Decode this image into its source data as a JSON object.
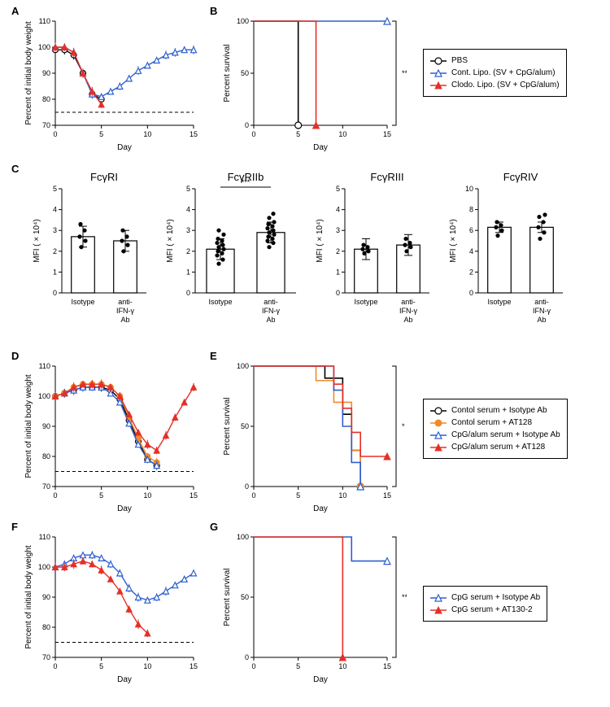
{
  "panels": {
    "A": "A",
    "B": "B",
    "C": "C",
    "D": "D",
    "E": "E",
    "F": "F",
    "G": "G"
  },
  "colors": {
    "black": "#000000",
    "blue": "#2e5fd0",
    "red": "#e53027",
    "orange": "#f08b2a",
    "white": "#ffffff"
  },
  "legendAB": {
    "items": [
      {
        "sym": "open-circle",
        "color": "#000000",
        "label": "PBS"
      },
      {
        "sym": "open-triangle",
        "color": "#2e5fd0",
        "label": "Cont. Lipo. (SV + CpG/alum)"
      },
      {
        "sym": "filled-triangle",
        "color": "#e53027",
        "label": "Clodo. Lipo. (SV + CpG/alum)"
      }
    ]
  },
  "legendDE": {
    "items": [
      {
        "sym": "open-circle",
        "color": "#000000",
        "label": "Contol serum + Isotype Ab"
      },
      {
        "sym": "filled-circle",
        "color": "#f08b2a",
        "label": "Contol serum + AT128"
      },
      {
        "sym": "open-triangle",
        "color": "#2e5fd0",
        "label": "CpG/alum serum + Isotype Ab"
      },
      {
        "sym": "filled-triangle",
        "color": "#e53027",
        "label": "CpG/alum serum + AT128"
      }
    ]
  },
  "legendFG": {
    "items": [
      {
        "sym": "open-triangle",
        "color": "#2e5fd0",
        "label": "CpG serum + Isotype Ab"
      },
      {
        "sym": "filled-triangle",
        "color": "#e53027",
        "label": "CpG serum + AT130-2"
      }
    ]
  },
  "panelA": {
    "xlabel": "Day",
    "ylabel": "Percent of initial body weight",
    "xlim": [
      0,
      15
    ],
    "ylim": [
      70,
      110
    ],
    "xtick": 5,
    "ytick": 10,
    "dashed_y": 75,
    "series": [
      {
        "color": "#000000",
        "marker": "open-circle",
        "x": [
          0,
          1,
          2,
          3,
          4,
          5
        ],
        "y": [
          99,
          99,
          97,
          90,
          82,
          80
        ]
      },
      {
        "color": "#2e5fd0",
        "marker": "open-triangle",
        "x": [
          0,
          1,
          2,
          3,
          4,
          5,
          6,
          7,
          8,
          9,
          10,
          11,
          12,
          13,
          14,
          15
        ],
        "y": [
          100,
          100,
          98,
          90,
          82,
          81,
          83,
          85,
          88,
          91,
          93,
          95,
          97,
          98,
          99,
          99
        ]
      },
      {
        "color": "#e53027",
        "marker": "filled-triangle",
        "x": [
          0,
          1,
          2,
          3,
          4,
          5
        ],
        "y": [
          100,
          100,
          98,
          90,
          83,
          78
        ]
      }
    ]
  },
  "panelB": {
    "xlabel": "Day",
    "ylabel": "Percent survival",
    "xlim": [
      0,
      15
    ],
    "ylim": [
      0,
      100
    ],
    "xtick": 5,
    "ytick": 50,
    "sig": "**",
    "series": [
      {
        "color": "#000000",
        "marker": "open-circle",
        "steps": [
          [
            0,
            100
          ],
          [
            5,
            100
          ],
          [
            5,
            0
          ]
        ]
      },
      {
        "color": "#2e5fd0",
        "marker": "open-triangle",
        "steps": [
          [
            0,
            100
          ],
          [
            15,
            100
          ]
        ]
      },
      {
        "color": "#e53027",
        "marker": "filled-triangle",
        "steps": [
          [
            0,
            100
          ],
          [
            7,
            100
          ],
          [
            7,
            0
          ]
        ]
      }
    ]
  },
  "panelC": {
    "ylabel": "MFI ( × 10⁴)",
    "groups": [
      "Isotype",
      "anti-\nIFN-γ\nAb"
    ],
    "charts": [
      {
        "title": "FcγRI",
        "ylim": [
          0,
          5
        ],
        "ytick": 1,
        "values": [
          2.7,
          2.5
        ],
        "points": [
          [
            2.2,
            2.5,
            2.7,
            3.0,
            3.3
          ],
          [
            2.0,
            2.3,
            2.5,
            2.7,
            3.0
          ]
        ]
      },
      {
        "title": "FcγRIIb",
        "ylim": [
          0,
          5
        ],
        "ytick": 1,
        "sig": "***",
        "values": [
          2.1,
          2.9
        ],
        "points": [
          [
            1.4,
            1.6,
            1.8,
            1.9,
            2.0,
            2.1,
            2.2,
            2.3,
            2.4,
            2.5,
            2.6,
            2.8,
            3.0
          ],
          [
            2.2,
            2.4,
            2.5,
            2.6,
            2.7,
            2.8,
            2.9,
            3.0,
            3.1,
            3.2,
            3.3,
            3.4,
            3.6,
            3.8
          ]
        ]
      },
      {
        "title": "FcγRIII",
        "ylim": [
          0,
          5
        ],
        "ytick": 1,
        "values": [
          2.1,
          2.3
        ],
        "points": [
          [
            1.9,
            2.0,
            2.1,
            2.2,
            2.3
          ],
          [
            2.0,
            2.2,
            2.3,
            2.4,
            2.6
          ]
        ]
      },
      {
        "title": "FcγRIV",
        "ylim": [
          0,
          10
        ],
        "ytick": 2,
        "values": [
          6.3,
          6.3
        ],
        "points": [
          [
            5.5,
            6.0,
            6.3,
            6.5,
            6.8
          ],
          [
            5.2,
            5.8,
            6.3,
            6.8,
            7.3,
            7.5
          ]
        ]
      }
    ]
  },
  "panelD": {
    "xlabel": "Day",
    "ylabel": "Percent of initial body weight",
    "xlim": [
      0,
      15
    ],
    "ylim": [
      70,
      110
    ],
    "xtick": 5,
    "ytick": 10,
    "dashed_y": 75,
    "series": [
      {
        "color": "#000000",
        "marker": "open-circle",
        "x": [
          0,
          1,
          2,
          3,
          4,
          5,
          6,
          7,
          8,
          9,
          10,
          11
        ],
        "y": [
          100,
          101,
          102,
          103,
          103,
          103,
          102,
          99,
          92,
          85,
          79,
          77
        ]
      },
      {
        "color": "#f08b2a",
        "marker": "filled-circle",
        "x": [
          0,
          1,
          2,
          3,
          4,
          5,
          6,
          7,
          8,
          9,
          10,
          11
        ],
        "y": [
          100,
          101,
          103,
          104,
          104,
          104,
          103,
          100,
          93,
          86,
          80,
          78
        ]
      },
      {
        "color": "#2e5fd0",
        "marker": "open-triangle",
        "x": [
          0,
          1,
          2,
          3,
          4,
          5,
          6,
          7,
          8,
          9,
          10,
          11
        ],
        "y": [
          100,
          101,
          102,
          103,
          103,
          103,
          101,
          98,
          91,
          84,
          79,
          77
        ]
      },
      {
        "color": "#e53027",
        "marker": "filled-triangle",
        "x": [
          0,
          1,
          2,
          3,
          4,
          5,
          6,
          7,
          8,
          9,
          10,
          11,
          12,
          13,
          14,
          15
        ],
        "y": [
          100,
          101,
          103,
          104,
          104,
          104,
          103,
          100,
          94,
          88,
          84,
          82,
          87,
          93,
          98,
          103
        ]
      }
    ]
  },
  "panelE": {
    "xlabel": "Day",
    "ylabel": "Percent survival",
    "xlim": [
      0,
      15
    ],
    "ylim": [
      0,
      100
    ],
    "xtick": 5,
    "ytick": 50,
    "sig": "*",
    "series": [
      {
        "color": "#000000",
        "marker": "open-circle",
        "steps": [
          [
            0,
            100
          ],
          [
            8,
            100
          ],
          [
            8,
            90
          ],
          [
            10,
            90
          ],
          [
            10,
            60
          ],
          [
            11,
            60
          ],
          [
            11,
            30
          ],
          [
            12,
            30
          ],
          [
            12,
            0
          ]
        ]
      },
      {
        "color": "#f08b2a",
        "marker": "filled-circle",
        "steps": [
          [
            0,
            100
          ],
          [
            7,
            100
          ],
          [
            7,
            88
          ],
          [
            9,
            88
          ],
          [
            9,
            70
          ],
          [
            11,
            70
          ],
          [
            11,
            30
          ],
          [
            12,
            30
          ],
          [
            12,
            0
          ]
        ]
      },
      {
        "color": "#2e5fd0",
        "marker": "open-triangle",
        "steps": [
          [
            0,
            100
          ],
          [
            9,
            100
          ],
          [
            9,
            80
          ],
          [
            10,
            80
          ],
          [
            10,
            50
          ],
          [
            11,
            50
          ],
          [
            11,
            20
          ],
          [
            12,
            20
          ],
          [
            12,
            0
          ]
        ]
      },
      {
        "color": "#e53027",
        "marker": "filled-triangle",
        "steps": [
          [
            0,
            100
          ],
          [
            9,
            100
          ],
          [
            9,
            85
          ],
          [
            10,
            85
          ],
          [
            10,
            65
          ],
          [
            11,
            65
          ],
          [
            11,
            45
          ],
          [
            12,
            45
          ],
          [
            12,
            25
          ],
          [
            15,
            25
          ]
        ]
      }
    ]
  },
  "panelF": {
    "xlabel": "Day",
    "ylabel": "Percent of initial body weight",
    "xlim": [
      0,
      15
    ],
    "ylim": [
      70,
      110
    ],
    "xtick": 5,
    "ytick": 10,
    "dashed_y": 75,
    "series": [
      {
        "color": "#2e5fd0",
        "marker": "open-triangle",
        "x": [
          0,
          1,
          2,
          3,
          4,
          5,
          6,
          7,
          8,
          9,
          10,
          11,
          12,
          13,
          14,
          15
        ],
        "y": [
          100,
          101,
          103,
          104,
          104,
          103,
          101,
          98,
          93,
          90,
          89,
          90,
          92,
          94,
          96,
          98
        ]
      },
      {
        "color": "#e53027",
        "marker": "filled-triangle",
        "x": [
          0,
          1,
          2,
          3,
          4,
          5,
          6,
          7,
          8,
          9,
          10
        ],
        "y": [
          100,
          100,
          101,
          102,
          101,
          99,
          96,
          92,
          86,
          81,
          78
        ]
      }
    ]
  },
  "panelG": {
    "xlabel": "Day",
    "ylabel": "Percent survival",
    "xlim": [
      0,
      15
    ],
    "ylim": [
      0,
      100
    ],
    "xtick": 5,
    "ytick": 50,
    "sig": "**",
    "series": [
      {
        "color": "#2e5fd0",
        "marker": "open-triangle",
        "steps": [
          [
            0,
            100
          ],
          [
            11,
            100
          ],
          [
            11,
            80
          ],
          [
            15,
            80
          ]
        ]
      },
      {
        "color": "#e53027",
        "marker": "filled-triangle",
        "steps": [
          [
            0,
            100
          ],
          [
            10,
            100
          ],
          [
            10,
            0
          ]
        ]
      }
    ]
  }
}
